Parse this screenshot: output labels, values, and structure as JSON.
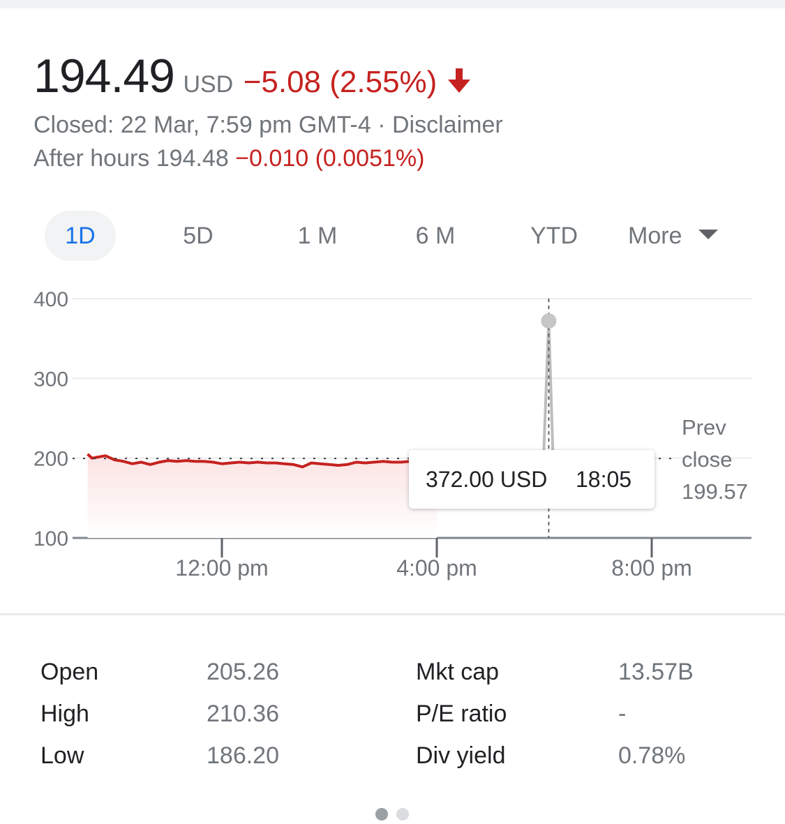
{
  "quote": {
    "price": "194.49",
    "currency": "USD",
    "change": "−5.08 (2.55%)",
    "status": "Closed: 22 Mar, 7:59 pm GMT-4",
    "separator": "·",
    "disclaimer": "Disclaimer",
    "after_hours_label": "After hours 194.48",
    "after_hours_change": "−0.010 (0.0051%)"
  },
  "tabs": [
    {
      "label": "1D",
      "active": true
    },
    {
      "label": "5D",
      "active": false
    },
    {
      "label": "1 M",
      "active": false
    },
    {
      "label": "6 M",
      "active": false
    },
    {
      "label": "YTD",
      "active": false
    },
    {
      "label": "More",
      "active": false
    }
  ],
  "tooltip": {
    "value": "372.00 USD",
    "time": "18:05"
  },
  "prev_close": {
    "line1": "Prev",
    "line2": "close",
    "value": "199.57"
  },
  "stats": {
    "left": [
      {
        "label": "Open",
        "value": "205.26"
      },
      {
        "label": "High",
        "value": "210.36"
      },
      {
        "label": "Low",
        "value": "186.20"
      }
    ],
    "right": [
      {
        "label": "Mkt cap",
        "value": "13.57B"
      },
      {
        "label": "P/E ratio",
        "value": "-"
      },
      {
        "label": "Div yield",
        "value": "0.78%"
      }
    ]
  },
  "colors": {
    "down": "#c5221f",
    "accent": "#1a73e8",
    "muted": "#70757a",
    "spike": "#bdbdbd"
  },
  "icons": {
    "change_direction": "arrow-down-icon",
    "more": "caret-down-icon"
  },
  "pagination": {
    "pages": 2,
    "current": 1
  },
  "chart_data": {
    "type": "line",
    "y_ticks": [
      "400",
      "300",
      "200",
      "100"
    ],
    "ylim": [
      100,
      400
    ],
    "x_ticks": [
      "12:00 pm",
      "4:00 pm",
      "8:00 pm"
    ],
    "prev_close": 199.57,
    "session_series": {
      "color": "#c5221f",
      "x": [
        "9:30",
        "9:35",
        "9:40",
        "9:50",
        "10:00",
        "10:10",
        "10:20",
        "10:30",
        "10:40",
        "10:50",
        "11:00",
        "11:10",
        "11:20",
        "11:30",
        "11:40",
        "11:50",
        "12:00",
        "12:10",
        "12:20",
        "12:30",
        "12:40",
        "12:50",
        "13:00",
        "13:10",
        "13:20",
        "13:30",
        "13:40",
        "13:50",
        "14:00",
        "14:10",
        "14:20",
        "14:30",
        "14:40",
        "14:50",
        "15:00",
        "15:10",
        "15:20",
        "15:30",
        "15:40",
        "15:50"
      ],
      "y": [
        205,
        200,
        201,
        203,
        198,
        196,
        193,
        195,
        192,
        195,
        197,
        196,
        197,
        196,
        196,
        195,
        193,
        194,
        195,
        194,
        195,
        194,
        194,
        193,
        192,
        189,
        194,
        193,
        192,
        191,
        192,
        195,
        194,
        195,
        196,
        195,
        195,
        196,
        195,
        194
      ]
    },
    "after_hours_series": {
      "color": "#bdbdbd",
      "x": [
        "16:00",
        "17:00",
        "17:59",
        "18:05",
        "18:10"
      ],
      "y": [
        194.5,
        194.5,
        194.5,
        372,
        194.5
      ]
    },
    "selected_point": {
      "x": "18:05",
      "y": 372
    }
  }
}
